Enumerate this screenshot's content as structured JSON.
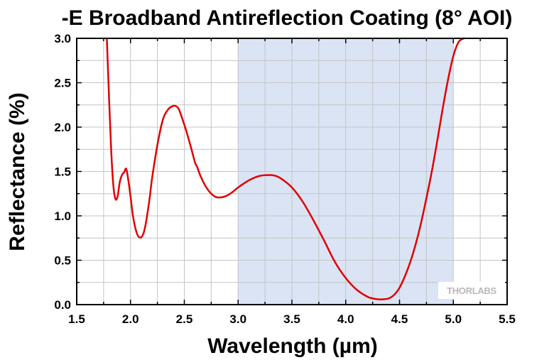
{
  "chart_data": {
    "type": "line",
    "title": "-E Broadband Antireflection Coating (8° AOI)",
    "xlabel": "Wavelength (µm)",
    "ylabel": "Reflectance (%)",
    "xlim": [
      1.5,
      5.5
    ],
    "ylim": [
      0,
      3.0
    ],
    "xticks": [
      1.5,
      2.0,
      2.5,
      3.0,
      3.5,
      4.0,
      4.5,
      5.0,
      5.5
    ],
    "xtick_labels": [
      "1.5",
      "2.0",
      "2.5",
      "3.0",
      "3.5",
      "4.0",
      "4.5",
      "5.0",
      "5.5"
    ],
    "yticks": [
      0.0,
      0.5,
      1.0,
      1.5,
      2.0,
      2.5,
      3.0
    ],
    "ytick_labels": [
      "0.0",
      "0.5",
      "1.0",
      "1.5",
      "2.0",
      "2.5",
      "3.0"
    ],
    "grid": true,
    "shaded_band": {
      "x_start": 3.0,
      "x_end": 5.0,
      "color": "#dbe4f5"
    },
    "series": [
      {
        "color": "#e00000",
        "x": [
          1.78,
          1.8,
          1.82,
          1.84,
          1.86,
          1.88,
          1.9,
          1.92,
          1.94,
          1.96,
          1.98,
          2.0,
          2.02,
          2.04,
          2.06,
          2.08,
          2.1,
          2.12,
          2.14,
          2.16,
          2.18,
          2.2,
          2.25,
          2.3,
          2.35,
          2.4,
          2.43,
          2.45,
          2.48,
          2.52,
          2.56,
          2.6,
          2.62,
          2.65,
          2.7,
          2.75,
          2.8,
          2.85,
          2.9,
          2.95,
          3.0,
          3.1,
          3.2,
          3.3,
          3.35,
          3.4,
          3.5,
          3.6,
          3.7,
          3.8,
          3.9,
          4.0,
          4.1,
          4.2,
          4.25,
          4.3,
          4.35,
          4.4,
          4.45,
          4.5,
          4.55,
          4.6,
          4.65,
          4.7,
          4.75,
          4.8,
          4.85,
          4.9,
          4.95,
          5.0,
          5.05,
          5.1
        ],
        "y": [
          3.0,
          2.35,
          1.75,
          1.35,
          1.19,
          1.22,
          1.38,
          1.46,
          1.49,
          1.53,
          1.4,
          1.22,
          1.02,
          0.89,
          0.8,
          0.76,
          0.76,
          0.8,
          0.9,
          1.05,
          1.22,
          1.42,
          1.8,
          2.08,
          2.2,
          2.24,
          2.23,
          2.2,
          2.1,
          1.95,
          1.78,
          1.6,
          1.55,
          1.45,
          1.33,
          1.25,
          1.21,
          1.21,
          1.23,
          1.27,
          1.32,
          1.4,
          1.45,
          1.46,
          1.45,
          1.42,
          1.32,
          1.16,
          0.95,
          0.72,
          0.48,
          0.3,
          0.17,
          0.09,
          0.07,
          0.06,
          0.06,
          0.07,
          0.11,
          0.19,
          0.32,
          0.48,
          0.68,
          0.92,
          1.2,
          1.5,
          1.84,
          2.2,
          2.53,
          2.8,
          2.96,
          3.0
        ]
      }
    ],
    "watermark": "THORLABS"
  }
}
